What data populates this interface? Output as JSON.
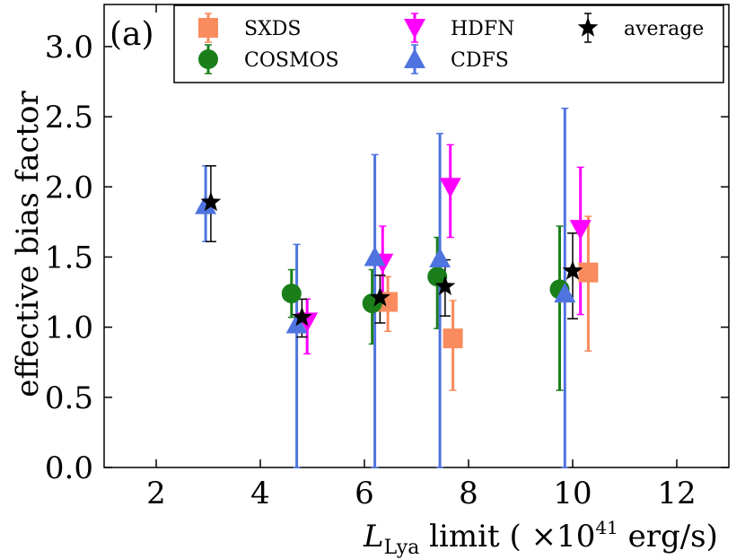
{
  "chart_data": {
    "type": "scatter",
    "panel_label": "(a)",
    "xlabel_main": "L",
    "xlabel_sub": "Lya",
    "xlabel_text": " limit ( ×10",
    "xlabel_sup": "41",
    "xlabel_unit": " erg/s)",
    "ylabel": "effective bias factor",
    "xlim": [
      1,
      13
    ],
    "ylim": [
      0,
      3.3
    ],
    "xticks": [
      2,
      4,
      6,
      8,
      10,
      12
    ],
    "yticks": [
      0.0,
      0.5,
      1.0,
      1.5,
      2.0,
      2.5,
      3.0
    ],
    "xtick_labels": [
      "2",
      "4",
      "6",
      "8",
      "10",
      "12"
    ],
    "ytick_labels": [
      "0.0",
      "0.5",
      "1.0",
      "1.5",
      "2.0",
      "2.5",
      "3.0"
    ],
    "legend_position": "top-right",
    "series": [
      {
        "name": "SXDS",
        "marker": "square",
        "color": "#f98b5e",
        "points": [
          {
            "x": 6.45,
            "y": 1.18,
            "lo": 0.97,
            "hi": 1.36
          },
          {
            "x": 7.7,
            "y": 0.92,
            "lo": 0.55,
            "hi": 1.19
          },
          {
            "x": 10.3,
            "y": 1.39,
            "lo": 0.83,
            "hi": 1.79
          }
        ]
      },
      {
        "name": "COSMOS",
        "marker": "circle",
        "color": "#1a7f1a",
        "points": [
          {
            "x": 4.6,
            "y": 1.24,
            "lo": 1.07,
            "hi": 1.41
          },
          {
            "x": 6.15,
            "y": 1.17,
            "lo": 0.88,
            "hi": 1.41
          },
          {
            "x": 7.4,
            "y": 1.36,
            "lo": 0.99,
            "hi": 1.64
          },
          {
            "x": 9.75,
            "y": 1.27,
            "lo": 0.55,
            "hi": 1.72
          }
        ]
      },
      {
        "name": "HDFN",
        "marker": "triangle-down",
        "color": "#ff00ff",
        "points": [
          {
            "x": 4.9,
            "y": 1.04,
            "lo": 0.81,
            "hi": 1.2
          },
          {
            "x": 6.35,
            "y": 1.46,
            "lo": 1.14,
            "hi": 1.72
          },
          {
            "x": 7.65,
            "y": 2.0,
            "lo": 1.64,
            "hi": 2.3
          },
          {
            "x": 10.15,
            "y": 1.7,
            "lo": 1.09,
            "hi": 2.14
          }
        ]
      },
      {
        "name": "CDFS",
        "marker": "triangle-up",
        "color": "#4f74e0",
        "points": [
          {
            "x": 2.95,
            "y": 1.87,
            "lo": 1.61,
            "hi": 2.15
          },
          {
            "x": 4.7,
            "y": 1.02,
            "lo": 0.0,
            "hi": 1.59
          },
          {
            "x": 6.2,
            "y": 1.5,
            "lo": 0.0,
            "hi": 2.23
          },
          {
            "x": 7.45,
            "y": 1.49,
            "lo": 0.0,
            "hi": 2.38
          },
          {
            "x": 9.85,
            "y": 1.24,
            "lo": 0.0,
            "hi": 2.56
          }
        ]
      },
      {
        "name": "average",
        "marker": "star",
        "color": "#000000",
        "points": [
          {
            "x": 3.05,
            "y": 1.89,
            "lo": 1.61,
            "hi": 2.15
          },
          {
            "x": 4.8,
            "y": 1.07,
            "lo": 0.93,
            "hi": 1.2
          },
          {
            "x": 6.3,
            "y": 1.21,
            "lo": 1.03,
            "hi": 1.37
          },
          {
            "x": 7.55,
            "y": 1.29,
            "lo": 1.08,
            "hi": 1.48
          },
          {
            "x": 10.0,
            "y": 1.4,
            "lo": 1.06,
            "hi": 1.67
          }
        ]
      }
    ]
  }
}
